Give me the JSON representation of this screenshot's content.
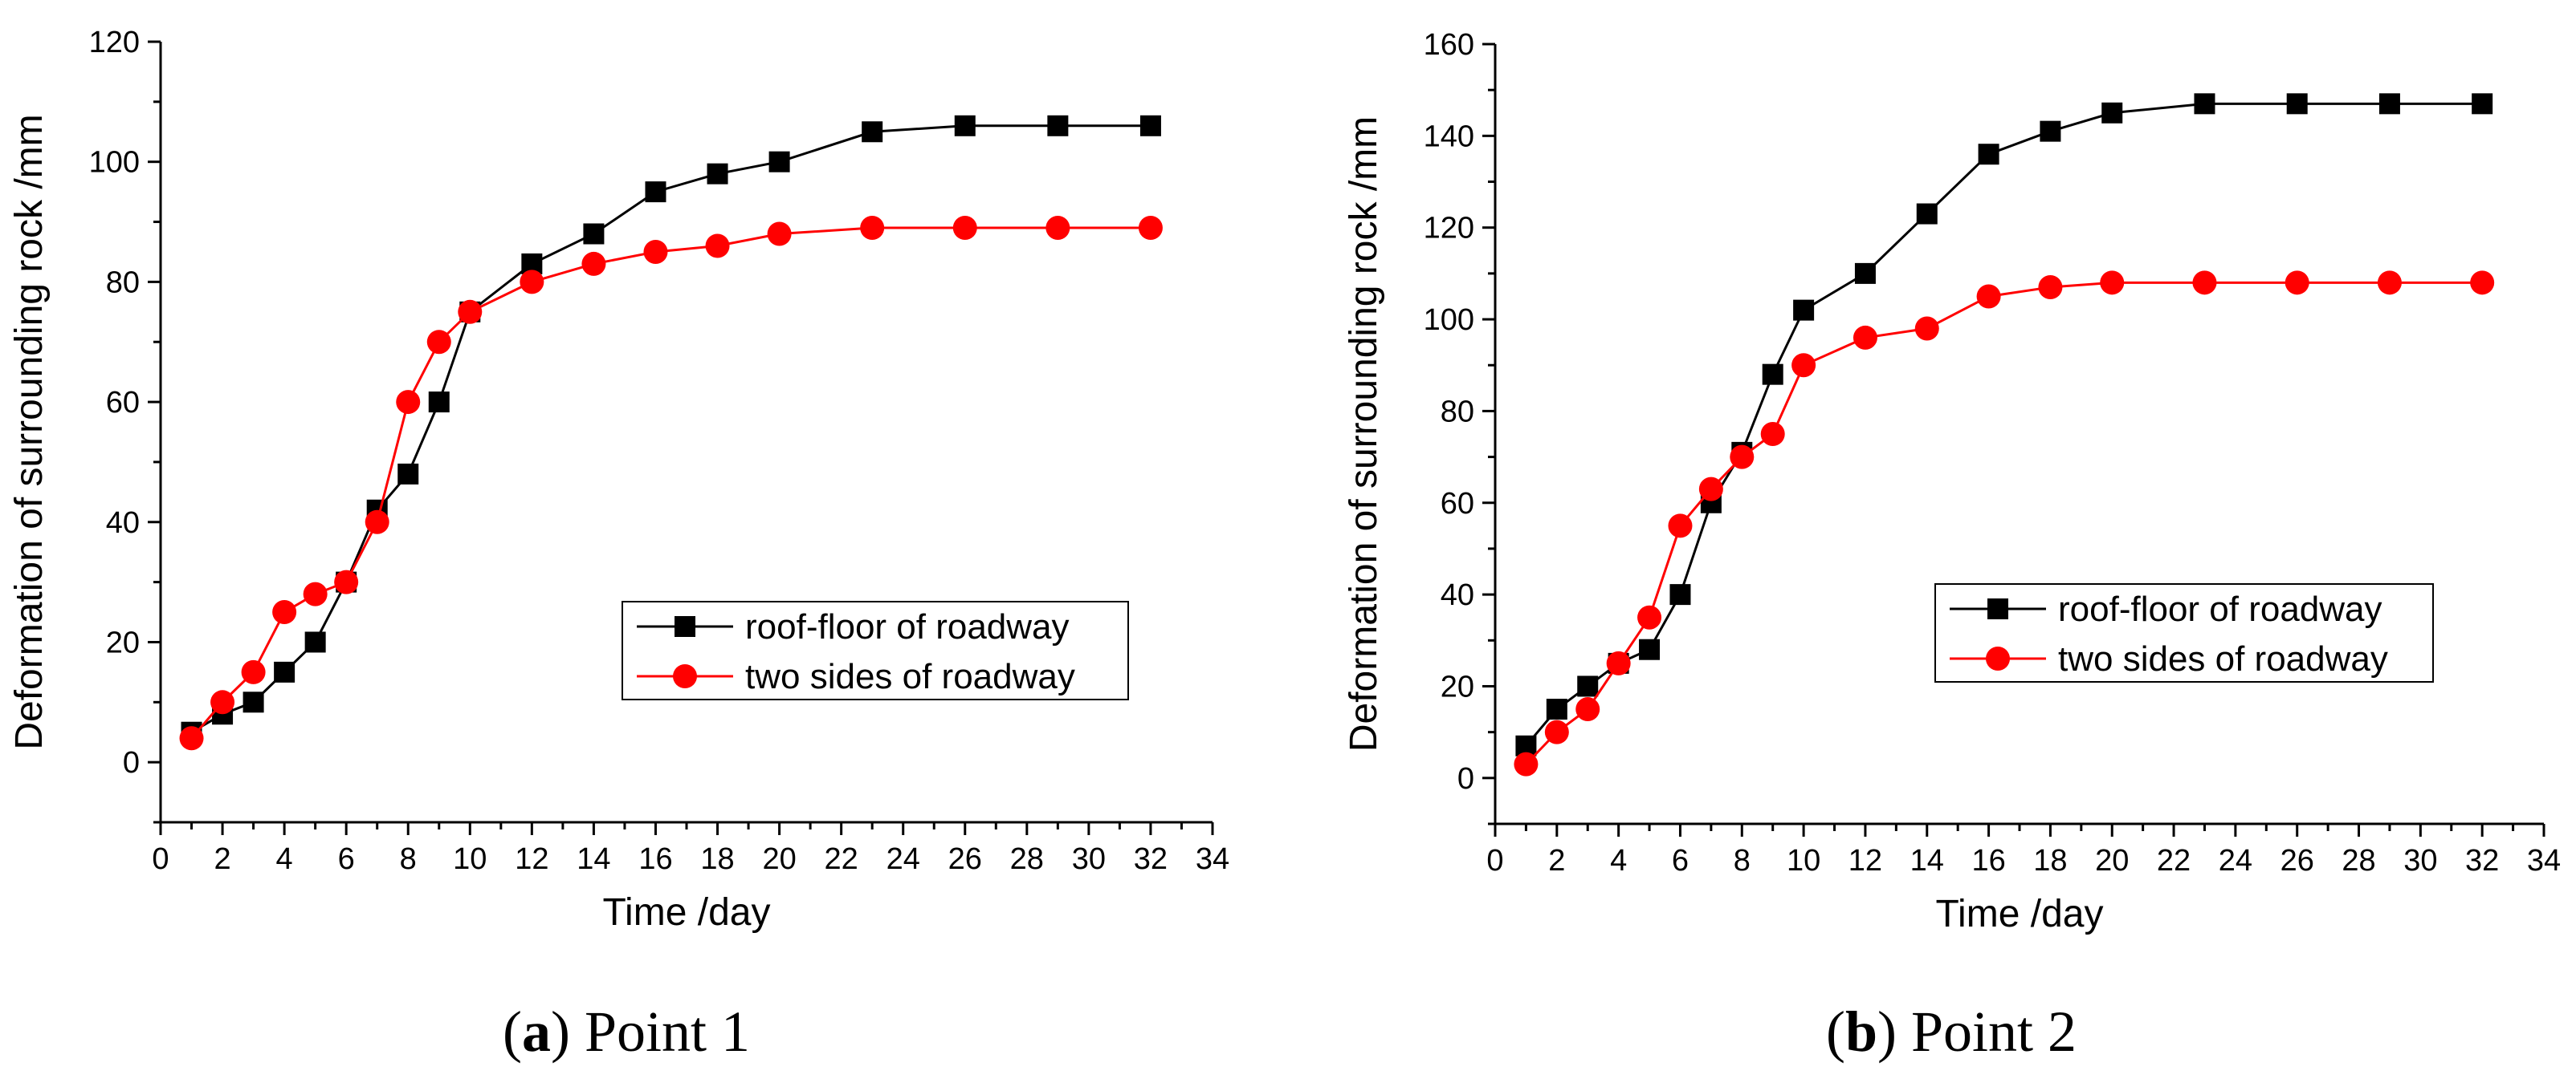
{
  "chart_data": [
    {
      "type": "line",
      "caption": {
        "letter": "a",
        "text": "Point 1"
      },
      "xlabel": "Time /day",
      "ylabel": "Deformation of surrounding rock /mm",
      "xlim": [
        0,
        34
      ],
      "ylim": [
        -10,
        120
      ],
      "xticks": [
        0,
        2,
        4,
        6,
        8,
        10,
        12,
        14,
        16,
        18,
        20,
        22,
        24,
        26,
        28,
        30,
        32,
        34
      ],
      "yticks": [
        0,
        20,
        40,
        60,
        80,
        100,
        120
      ],
      "legend_position": "center-right",
      "series": [
        {
          "name": "roof-floor of roadway",
          "color": "#000000",
          "marker": "square",
          "x": [
            1,
            2,
            3,
            4,
            5,
            6,
            7,
            8,
            9,
            10,
            12,
            14,
            16,
            18,
            20,
            23,
            26,
            29,
            32
          ],
          "y": [
            5,
            8,
            10,
            15,
            20,
            30,
            42,
            48,
            60,
            75,
            83,
            88,
            95,
            98,
            100,
            105,
            106,
            106,
            106
          ]
        },
        {
          "name": "two sides of roadway",
          "color": "#ff0000",
          "marker": "circle",
          "x": [
            1,
            2,
            3,
            4,
            5,
            6,
            7,
            8,
            9,
            10,
            12,
            14,
            16,
            18,
            20,
            23,
            26,
            29,
            32
          ],
          "y": [
            4,
            10,
            15,
            25,
            28,
            30,
            40,
            60,
            70,
            75,
            80,
            83,
            85,
            86,
            88,
            89,
            89,
            89,
            89
          ]
        }
      ]
    },
    {
      "type": "line",
      "caption": {
        "letter": "b",
        "text": "Point 2"
      },
      "xlabel": "Time /day",
      "ylabel": "Deformation of surrounding rock /mm",
      "xlim": [
        0,
        34
      ],
      "ylim": [
        -10,
        160
      ],
      "xticks": [
        0,
        2,
        4,
        6,
        8,
        10,
        12,
        14,
        16,
        18,
        20,
        22,
        24,
        26,
        28,
        30,
        32,
        34
      ],
      "yticks": [
        0,
        20,
        40,
        60,
        80,
        100,
        120,
        140,
        160
      ],
      "legend_position": "center-right",
      "series": [
        {
          "name": "roof-floor of roadway",
          "color": "#000000",
          "marker": "square",
          "x": [
            1,
            2,
            3,
            4,
            5,
            6,
            7,
            8,
            9,
            10,
            12,
            14,
            16,
            18,
            20,
            23,
            26,
            29,
            32
          ],
          "y": [
            7,
            15,
            20,
            25,
            28,
            40,
            60,
            71,
            88,
            102,
            110,
            123,
            136,
            141,
            145,
            147,
            147,
            147,
            147
          ]
        },
        {
          "name": "two sides of roadway",
          "color": "#ff0000",
          "marker": "circle",
          "x": [
            1,
            2,
            3,
            4,
            5,
            6,
            7,
            8,
            9,
            10,
            12,
            14,
            16,
            18,
            20,
            23,
            26,
            29,
            32
          ],
          "y": [
            3,
            10,
            15,
            25,
            35,
            55,
            63,
            70,
            75,
            90,
            96,
            98,
            105,
            107,
            108,
            108,
            108,
            108,
            108
          ]
        }
      ]
    }
  ]
}
